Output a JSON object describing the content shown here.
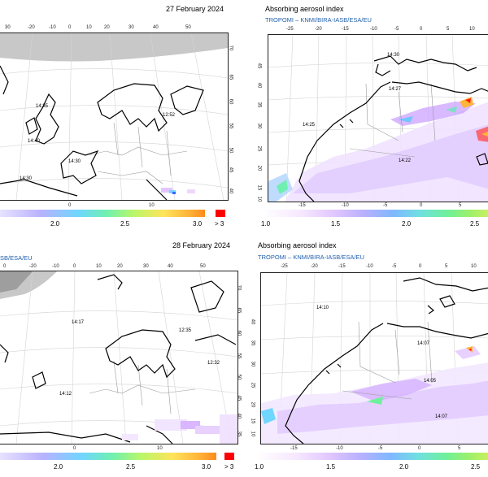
{
  "panels": {
    "tl": {
      "date": "27 February 2024",
      "top_ticks": [
        "30",
        "-20",
        "-10",
        "0",
        "10",
        "20",
        "30",
        "40",
        "50"
      ],
      "right_ticks": [
        "70",
        "65",
        "60",
        "55",
        "50",
        "45",
        "40"
      ],
      "bottom_ticks": [
        "0",
        "10"
      ],
      "times": [
        "14:35",
        "12:52",
        "14:40",
        "14:30",
        "14:30"
      ],
      "colorbar": [
        "2.0",
        "2.5",
        "3.0",
        "> 3"
      ]
    },
    "tr": {
      "title": "Absorbing aerosol index",
      "subtitle": "TROPOMI  –  KNMI/BIRA-IASB/ESA/EU",
      "top_ticks": [
        "-25",
        "-20",
        "-15",
        "-10",
        "-5",
        "0",
        "5",
        "10"
      ],
      "left_ticks": [
        "45",
        "40",
        "35",
        "30",
        "25",
        "20",
        "15",
        "10"
      ],
      "bottom_ticks": [
        "-15",
        "-10",
        "-5",
        "0",
        "5"
      ],
      "times": [
        "14:30",
        "14:27",
        "14:25",
        "14:22"
      ],
      "colorbar": [
        "1.0",
        "1.5",
        "2.0",
        "2.5"
      ]
    },
    "bl": {
      "date": "28 February 2024",
      "subtitle": "SB/ESA/EU",
      "top_ticks": [
        "0",
        "-20",
        "-10",
        "0",
        "10",
        "20",
        "30",
        "40",
        "50"
      ],
      "right_ticks": [
        "70",
        "65",
        "60",
        "55",
        "50",
        "45",
        "40",
        "35"
      ],
      "bottom_ticks": [
        "0",
        "10"
      ],
      "times": [
        "14:17",
        "12:35",
        "12:32",
        "14:12"
      ],
      "colorbar": [
        "2.0",
        "2.5",
        "3.0",
        "> 3"
      ]
    },
    "br": {
      "title": "Absorbing aerosol index",
      "subtitle": "TROPOMI  –  KNMI/BIRA-IASB/ESA/EU",
      "top_ticks": [
        "-25",
        "-20",
        "-15",
        "-10",
        "-5",
        "0",
        "5",
        "10"
      ],
      "left_ticks": [
        "40",
        "35",
        "30",
        "25",
        "20",
        "15",
        "10"
      ],
      "bottom_ticks": [
        "-15",
        "-10",
        "-5",
        "0",
        "5"
      ],
      "times": [
        "14:10",
        "14:07",
        "14:05",
        "14:07"
      ],
      "colorbar": [
        "1.0",
        "1.5",
        "2.0",
        "2.5"
      ]
    }
  },
  "colors": {
    "coast": "#000000",
    "border": "#9a9a9a",
    "grid": "#cfcfcf",
    "polar_mask": "#c8c8c8",
    "over_range": "#ff0000",
    "subtitle": "#1f5fae"
  }
}
